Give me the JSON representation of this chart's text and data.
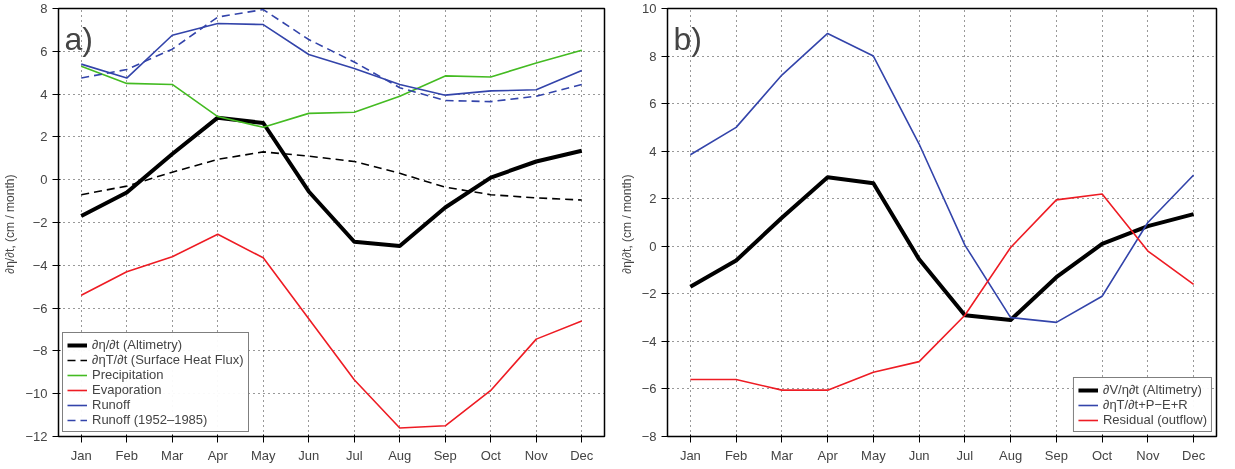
{
  "chart_data": [
    {
      "type": "line",
      "annotations": [
        "a)"
      ],
      "ylabel": "∂η/∂t,  (cm / month)",
      "categories": [
        "Jan",
        "Feb",
        "Mar",
        "Apr",
        "May",
        "Jun",
        "Jul",
        "Aug",
        "Sep",
        "Oct",
        "Nov",
        "Dec"
      ],
      "ylim": [
        -12,
        8
      ],
      "yticks": [
        -12,
        -10,
        -8,
        -6,
        -4,
        -2,
        0,
        2,
        4,
        6,
        8
      ],
      "grid": true,
      "legend": "bottom left",
      "series": [
        {
          "name": "∂η/∂t (Altimetry)",
          "color": "#000000",
          "line_style": "solid",
          "values": [
            -1.7,
            -0.6,
            1.2,
            2.9,
            2.65,
            -0.55,
            -2.9,
            -3.1,
            -1.3,
            0.1,
            0.85,
            1.35
          ]
        },
        {
          "name": "∂ηT/∂t (Surface Heat Flux)",
          "color": "#000000",
          "line_style": "dashed",
          "values": [
            -0.7,
            -0.3,
            0.35,
            0.95,
            1.3,
            1.1,
            0.85,
            0.3,
            -0.35,
            -0.7,
            -0.85,
            -0.95
          ]
        },
        {
          "name": "Precipitation",
          "color": "#44bb22",
          "line_style": "solid",
          "values": [
            5.3,
            4.5,
            4.45,
            2.95,
            2.45,
            3.1,
            3.15,
            3.9,
            4.85,
            4.8,
            5.45,
            6.05
          ]
        },
        {
          "name": "Evaporation",
          "color": "#ee1c24",
          "line_style": "solid",
          "values": [
            -5.4,
            -4.3,
            -3.6,
            -2.55,
            -3.65,
            -6.5,
            -9.35,
            -11.6,
            -11.5,
            -9.85,
            -7.45,
            -6.6
          ]
        },
        {
          "name": "Runoff",
          "color": "#3344aa",
          "line_style": "solid",
          "values": [
            5.4,
            4.75,
            6.75,
            7.3,
            7.25,
            5.85,
            5.2,
            4.45,
            3.95,
            4.15,
            4.2,
            5.1
          ]
        },
        {
          "name": "Runoff (1952–1985)",
          "color": "#3344aa",
          "line_style": "dashed",
          "values": [
            4.75,
            5.15,
            6.1,
            7.6,
            7.95,
            6.55,
            5.5,
            4.3,
            3.7,
            3.65,
            3.9,
            4.45
          ]
        }
      ]
    },
    {
      "type": "line",
      "annotations": [
        "b)"
      ],
      "ylabel": "∂η/∂t,  (cm / month)",
      "categories": [
        "Jan",
        "Feb",
        "Mar",
        "Apr",
        "May",
        "Jun",
        "Jul",
        "Aug",
        "Sep",
        "Oct",
        "Nov",
        "Dec"
      ],
      "ylim": [
        -8,
        10
      ],
      "yticks": [
        -8,
        -6,
        -4,
        -2,
        0,
        2,
        4,
        6,
        8,
        10
      ],
      "grid": true,
      "legend": "bottom right",
      "series": [
        {
          "name": "∂V/η∂t (Altimetry)",
          "color": "#000000",
          "line_style": "solid",
          "values": [
            -1.7,
            -0.6,
            1.2,
            2.9,
            2.65,
            -0.55,
            -2.9,
            -3.1,
            -1.3,
            0.1,
            0.85,
            1.35
          ]
        },
        {
          "name": "∂ηT/∂t+P−E+R",
          "color": "#3344aa",
          "line_style": "solid",
          "values": [
            3.85,
            5.0,
            7.2,
            8.95,
            8.0,
            4.3,
            0.05,
            -3.0,
            -3.2,
            -2.1,
            1.0,
            3.0
          ]
        },
        {
          "name": "Residual (outflow)",
          "color": "#ee1c24",
          "line_style": "solid",
          "values": [
            -5.6,
            -5.6,
            -6.05,
            -6.05,
            -5.3,
            -4.85,
            -2.9,
            -0.05,
            1.95,
            2.2,
            -0.2,
            -1.6
          ]
        }
      ]
    }
  ]
}
